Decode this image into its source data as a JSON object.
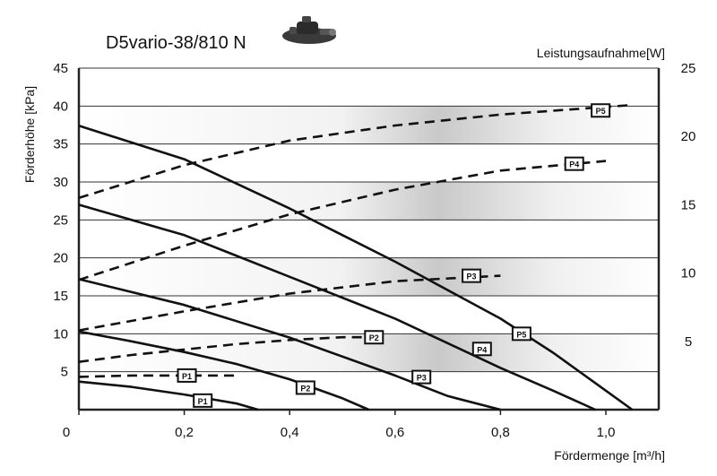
{
  "chart_data": {
    "type": "line",
    "title": "D5vario-38/810 N",
    "xlabel": "Fördermenge [m³/h]",
    "ylabel": "Förderhöhe [kPa]",
    "y2label": "Leistungsaufnahme[W]",
    "xlim": [
      0,
      1.1
    ],
    "ylim": [
      0,
      45
    ],
    "y2lim": [
      0,
      25
    ],
    "x_ticks": [
      "0",
      "0,2",
      "0,4",
      "0,6",
      "0,8",
      "1,0"
    ],
    "y_ticks": [
      "5",
      "10",
      "15",
      "20",
      "25",
      "30",
      "35",
      "40",
      "45"
    ],
    "y2_ticks": [
      "5",
      "10",
      "15",
      "20",
      "25"
    ],
    "grid": true,
    "pump_image": "pump-icon",
    "series": [
      {
        "name": "P1",
        "kind": "head",
        "axis": "left",
        "style": "solid",
        "x": [
          0,
          0.1,
          0.2,
          0.3,
          0.34
        ],
        "y": [
          3.7,
          3.0,
          2.0,
          0.8,
          0
        ],
        "label_at": [
          0.235,
          1.2
        ]
      },
      {
        "name": "P2",
        "kind": "head",
        "axis": "left",
        "style": "solid",
        "x": [
          0,
          0.1,
          0.2,
          0.3,
          0.4,
          0.5,
          0.55
        ],
        "y": [
          10.3,
          9.0,
          7.6,
          6.0,
          4.0,
          1.5,
          0
        ],
        "label_at": [
          0.43,
          2.9
        ]
      },
      {
        "name": "P3",
        "kind": "head",
        "axis": "left",
        "style": "solid",
        "x": [
          0,
          0.2,
          0.4,
          0.6,
          0.7,
          0.8
        ],
        "y": [
          17.2,
          13.8,
          9.5,
          4.5,
          1.8,
          0
        ],
        "label_at": [
          0.65,
          4.3
        ]
      },
      {
        "name": "P4",
        "kind": "head",
        "axis": "left",
        "style": "solid",
        "x": [
          0,
          0.2,
          0.4,
          0.6,
          0.8,
          0.9,
          0.98
        ],
        "y": [
          27.0,
          23.0,
          17.5,
          12.0,
          5.5,
          2.5,
          0
        ],
        "label_at": [
          0.765,
          8.0
        ]
      },
      {
        "name": "P5",
        "kind": "head",
        "axis": "left",
        "style": "solid",
        "x": [
          0,
          0.2,
          0.4,
          0.6,
          0.8,
          0.9,
          1.0,
          1.05
        ],
        "y": [
          37.4,
          33.0,
          26.5,
          19.5,
          12.0,
          7.5,
          2.5,
          0
        ],
        "label_at": [
          0.84,
          10.0
        ]
      },
      {
        "name": "P1",
        "kind": "power",
        "axis": "right",
        "style": "dashed",
        "x": [
          0,
          0.1,
          0.2,
          0.3
        ],
        "y": [
          2.4,
          2.5,
          2.5,
          2.5
        ],
        "label_at": [
          0.205,
          2.5
        ]
      },
      {
        "name": "P2",
        "kind": "power",
        "axis": "right",
        "style": "dashed",
        "x": [
          0,
          0.1,
          0.2,
          0.3,
          0.4,
          0.5,
          0.55
        ],
        "y": [
          3.5,
          4.0,
          4.4,
          4.8,
          5.1,
          5.3,
          5.3
        ],
        "label_at": [
          0.56,
          5.3
        ]
      },
      {
        "name": "P3",
        "kind": "power",
        "axis": "right",
        "style": "dashed",
        "x": [
          0,
          0.2,
          0.4,
          0.6,
          0.8
        ],
        "y": [
          5.8,
          7.2,
          8.5,
          9.4,
          9.8
        ],
        "label_at": [
          0.745,
          9.8
        ]
      },
      {
        "name": "P4",
        "kind": "power",
        "axis": "right",
        "style": "dashed",
        "x": [
          0,
          0.2,
          0.4,
          0.6,
          0.8,
          1.0
        ],
        "y": [
          9.5,
          12.0,
          14.3,
          16.1,
          17.5,
          18.2
        ],
        "label_at": [
          0.94,
          18.0
        ]
      },
      {
        "name": "P5",
        "kind": "power",
        "axis": "right",
        "style": "dashed",
        "x": [
          0,
          0.2,
          0.4,
          0.6,
          0.8,
          1.05
        ],
        "y": [
          15.5,
          17.9,
          19.7,
          20.8,
          21.6,
          22.3
        ],
        "label_at": [
          0.99,
          21.9
        ]
      }
    ]
  }
}
